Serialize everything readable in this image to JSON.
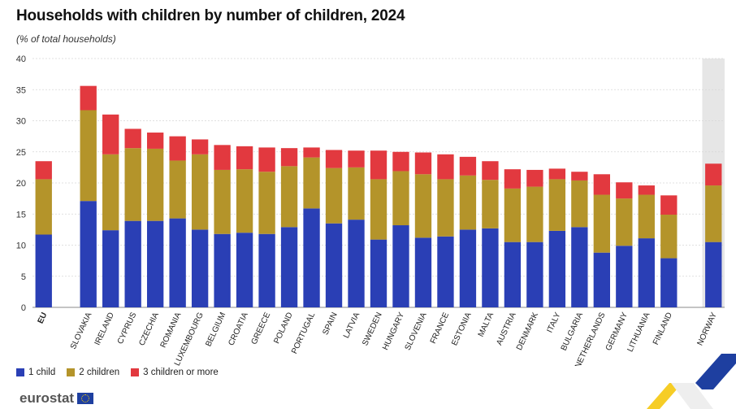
{
  "title": "Households with children by number of children, 2024",
  "subtitle": "(% of total households)",
  "logo_text": "eurostat",
  "colors": {
    "one": "#2a3fb5",
    "two": "#b4942a",
    "three": "#e2393f",
    "highlight": "#e6e6e6"
  },
  "chart_data": {
    "type": "bar",
    "stacked": true,
    "ylim": [
      0,
      40
    ],
    "yticks": [
      0,
      5,
      10,
      15,
      20,
      25,
      30,
      35,
      40
    ],
    "grid": true,
    "legend_position": "bottom-left",
    "categories": [
      "EU",
      "",
      "SLOVAKIA",
      "IRELAND",
      "CYPRUS",
      "CZECHIA",
      "ROMANIA",
      "LUXEMBOURG",
      "BELGIUM",
      "CROATIA",
      "GREECE",
      "POLAND",
      "PORTUGAL",
      "SPAIN",
      "LATVIA",
      "SWEDEN",
      "HUNGARY",
      "SLOVENIA",
      "FRANCE",
      "ESTONIA",
      "MALTA",
      "AUSTRIA",
      "DENMARK",
      "ITALY",
      "BULGARIA",
      "NETHERLANDS",
      "GERMANY",
      "LITHUANIA",
      "FINLAND",
      "",
      "NORWAY"
    ],
    "series": [
      {
        "name": "1 child",
        "values": [
          11.7,
          null,
          17.1,
          12.4,
          13.9,
          13.9,
          14.3,
          12.5,
          11.8,
          12.0,
          11.8,
          12.9,
          15.9,
          13.5,
          14.1,
          10.9,
          13.2,
          11.2,
          11.4,
          12.5,
          12.7,
          10.5,
          10.5,
          12.3,
          12.9,
          8.8,
          9.9,
          11.1,
          7.9,
          null,
          10.5
        ]
      },
      {
        "name": "2 children",
        "values": [
          8.9,
          null,
          14.6,
          12.2,
          11.7,
          11.6,
          9.3,
          12.1,
          10.3,
          10.2,
          10.0,
          9.8,
          8.2,
          8.9,
          8.4,
          9.7,
          8.7,
          10.2,
          9.2,
          8.7,
          7.8,
          8.6,
          8.9,
          8.3,
          7.5,
          9.3,
          7.6,
          7.0,
          7.0,
          null,
          9.1
        ]
      },
      {
        "name": "3 children or more",
        "values": [
          2.9,
          null,
          3.9,
          6.4,
          3.1,
          2.6,
          3.9,
          2.4,
          4.0,
          3.7,
          3.9,
          2.9,
          1.6,
          2.9,
          2.7,
          4.6,
          3.1,
          3.5,
          4.0,
          3.0,
          3.0,
          3.1,
          2.7,
          1.7,
          1.4,
          3.3,
          2.6,
          1.5,
          3.1,
          null,
          3.5
        ]
      }
    ],
    "emphasized": [
      "EU"
    ],
    "highlighted": [
      "NORWAY"
    ]
  }
}
